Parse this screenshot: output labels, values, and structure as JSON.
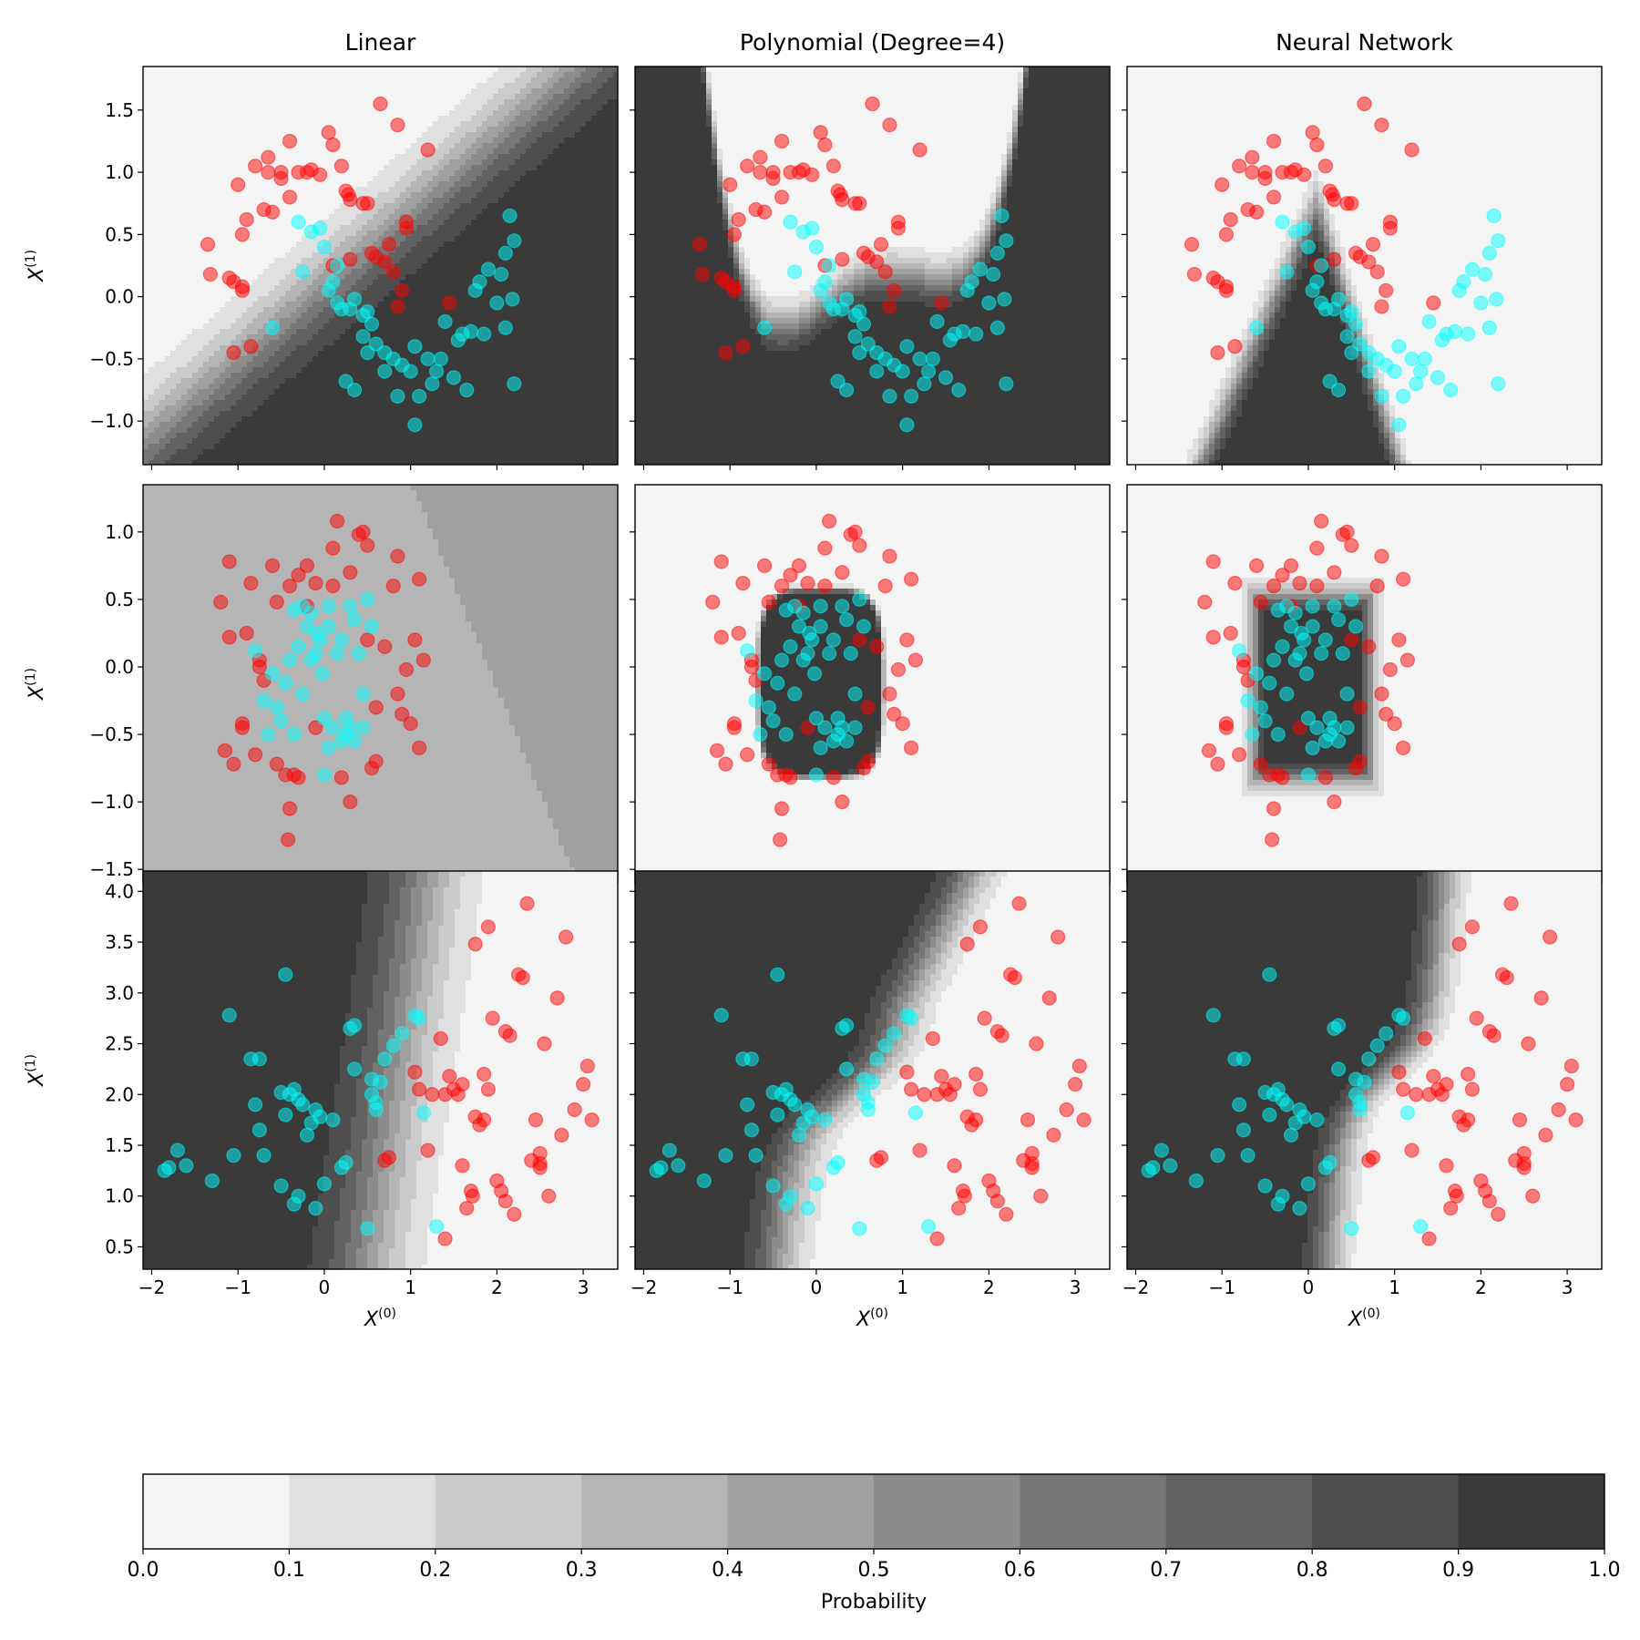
{
  "colors": {
    "class_red": "#ff0000",
    "class_cyan": "#00ffff",
    "levels": [
      "#f4f4f4",
      "#e0e0e0",
      "#cbcbcb",
      "#b5b5b5",
      "#a0a0a0",
      "#8c8c8c",
      "#777777",
      "#626262",
      "#4e4e4e",
      "#3a3a3a"
    ]
  },
  "chart_data": {
    "type": "contour-scatter-grid",
    "col_titles": [
      "Linear",
      "Polynomial (Degree=4)",
      "Neural Network"
    ],
    "xlabel": "X(0)",
    "ylabel": "X(1)",
    "xlim": [
      -2.1,
      3.4
    ],
    "xticks": [
      -2,
      -1,
      0,
      1,
      2,
      3
    ],
    "xtick_labels": [
      "−2",
      "−1",
      "0",
      "1",
      "2",
      "3"
    ],
    "rows": [
      {
        "name": "moons",
        "ylim": [
          -1.35,
          1.85
        ],
        "yticks": [
          -1.0,
          -0.5,
          0.0,
          0.5,
          1.0,
          1.5
        ],
        "ytick_labels": [
          "−1.0",
          "−0.5",
          "0.0",
          "0.5",
          "1.0",
          "1.5"
        ],
        "models": [
          "linear",
          "moons_poly",
          "moons_nn"
        ],
        "class0": [
          [
            -1.35,
            0.42
          ],
          [
            -1.32,
            0.18
          ],
          [
            -1.05,
            0.12
          ],
          [
            -1.1,
            0.15
          ],
          [
            -0.95,
            0.05
          ],
          [
            -0.95,
            0.08
          ],
          [
            -0.95,
            0.5
          ],
          [
            -0.9,
            0.62
          ],
          [
            -1.0,
            0.9
          ],
          [
            -0.8,
            1.05
          ],
          [
            -0.65,
            1.0
          ],
          [
            -0.65,
            1.12
          ],
          [
            -0.5,
            0.95
          ],
          [
            -0.5,
            1.0
          ],
          [
            -0.4,
            1.25
          ],
          [
            -0.3,
            1.0
          ],
          [
            -0.2,
            1.0
          ],
          [
            -0.15,
            1.02
          ],
          [
            -0.05,
            0.98
          ],
          [
            0.05,
            1.32
          ],
          [
            0.1,
            1.22
          ],
          [
            0.2,
            1.05
          ],
          [
            0.25,
            0.85
          ],
          [
            0.28,
            0.82
          ],
          [
            0.3,
            0.78
          ],
          [
            0.45,
            0.75
          ],
          [
            0.5,
            0.75
          ],
          [
            0.65,
            1.55
          ],
          [
            0.85,
            1.38
          ],
          [
            0.95,
            0.55
          ],
          [
            0.95,
            0.6
          ],
          [
            1.2,
            1.18
          ],
          [
            -0.7,
            0.7
          ],
          [
            -0.6,
            0.68
          ],
          [
            -0.4,
            0.8
          ],
          [
            0.55,
            0.35
          ],
          [
            0.6,
            0.32
          ],
          [
            0.7,
            0.28
          ],
          [
            0.8,
            0.2
          ],
          [
            0.85,
            -0.08
          ],
          [
            -1.05,
            -0.45
          ],
          [
            -0.85,
            -0.4
          ],
          [
            0.3,
            0.3
          ],
          [
            0.1,
            0.25
          ],
          [
            0.75,
            0.42
          ],
          [
            1.45,
            -0.05
          ],
          [
            0.9,
            0.05
          ]
        ],
        "class1": [
          [
            -0.6,
            -0.25
          ],
          [
            -0.3,
            0.6
          ],
          [
            -0.25,
            0.2
          ],
          [
            -0.15,
            0.52
          ],
          [
            -0.05,
            0.55
          ],
          [
            0.0,
            0.4
          ],
          [
            0.05,
            0.05
          ],
          [
            0.1,
            0.12
          ],
          [
            0.15,
            0.25
          ],
          [
            0.15,
            -0.05
          ],
          [
            0.2,
            -0.1
          ],
          [
            0.3,
            -0.1
          ],
          [
            0.35,
            -0.02
          ],
          [
            0.45,
            -0.15
          ],
          [
            0.5,
            -0.12
          ],
          [
            0.55,
            -0.22
          ],
          [
            0.45,
            -0.32
          ],
          [
            0.6,
            -0.38
          ],
          [
            0.7,
            -0.45
          ],
          [
            0.8,
            -0.5
          ],
          [
            0.9,
            -0.55
          ],
          [
            1.05,
            -0.4
          ],
          [
            1.2,
            -0.5
          ],
          [
            1.25,
            -0.7
          ],
          [
            1.3,
            -0.6
          ],
          [
            1.35,
            -0.5
          ],
          [
            1.4,
            -0.2
          ],
          [
            1.5,
            -0.65
          ],
          [
            1.55,
            -0.35
          ],
          [
            1.7,
            -0.28
          ],
          [
            1.75,
            0.05
          ],
          [
            1.8,
            0.12
          ],
          [
            1.85,
            -0.3
          ],
          [
            1.9,
            0.22
          ],
          [
            2.0,
            -0.05
          ],
          [
            2.05,
            0.18
          ],
          [
            2.1,
            0.35
          ],
          [
            2.1,
            -0.25
          ],
          [
            2.15,
            0.65
          ],
          [
            2.2,
            0.45
          ],
          [
            2.18,
            -0.02
          ],
          [
            2.2,
            -0.7
          ],
          [
            1.6,
            -0.3
          ],
          [
            1.0,
            -0.6
          ],
          [
            0.7,
            -0.6
          ],
          [
            0.85,
            -0.8
          ],
          [
            1.1,
            -0.8
          ],
          [
            1.05,
            -1.03
          ],
          [
            0.5,
            -0.45
          ],
          [
            1.65,
            -0.75
          ],
          [
            0.35,
            -0.75
          ],
          [
            0.25,
            -0.68
          ]
        ]
      },
      {
        "name": "circles",
        "ylim": [
          -1.6,
          1.35
        ],
        "yticks": [
          -1.5,
          -1.0,
          -0.5,
          0.0,
          0.5,
          1.0
        ],
        "ytick_labels": [
          "−1.5",
          "−1.0",
          "−0.5",
          "0.0",
          "0.5",
          "1.0"
        ],
        "models": [
          "circles_linear",
          "circles_poly",
          "circles_nn"
        ],
        "class0": [
          [
            -1.1,
            0.78
          ],
          [
            -1.2,
            0.48
          ],
          [
            -1.1,
            0.22
          ],
          [
            -1.15,
            -0.62
          ],
          [
            -1.05,
            -0.72
          ],
          [
            -0.95,
            -0.45
          ],
          [
            -0.95,
            -0.42
          ],
          [
            -0.85,
            0.62
          ],
          [
            -0.8,
            -0.65
          ],
          [
            -0.75,
            0.0
          ],
          [
            -0.75,
            0.05
          ],
          [
            -0.7,
            -0.1
          ],
          [
            -0.6,
            0.75
          ],
          [
            -0.55,
            0.48
          ],
          [
            -0.55,
            -0.72
          ],
          [
            -0.45,
            -0.8
          ],
          [
            -0.4,
            0.6
          ],
          [
            -0.35,
            -0.8
          ],
          [
            -0.3,
            0.68
          ],
          [
            -0.2,
            0.75
          ],
          [
            -0.1,
            0.62
          ],
          [
            -0.4,
            -1.05
          ],
          [
            -0.42,
            -1.28
          ],
          [
            -0.3,
            -0.82
          ],
          [
            0.1,
            0.88
          ],
          [
            0.15,
            1.08
          ],
          [
            0.2,
            -0.82
          ],
          [
            0.3,
            -1.0
          ],
          [
            0.4,
            0.98
          ],
          [
            0.45,
            1.0
          ],
          [
            0.5,
            0.9
          ],
          [
            0.55,
            -0.75
          ],
          [
            0.6,
            -0.7
          ],
          [
            0.5,
            0.2
          ],
          [
            0.7,
            0.15
          ],
          [
            0.8,
            0.6
          ],
          [
            0.85,
            0.82
          ],
          [
            0.9,
            -0.35
          ],
          [
            0.95,
            -0.02
          ],
          [
            1.0,
            -0.42
          ],
          [
            1.05,
            0.2
          ],
          [
            1.1,
            0.65
          ],
          [
            1.15,
            0.05
          ],
          [
            -0.9,
            0.25
          ],
          [
            -0.2,
            0.45
          ],
          [
            0.1,
            0.6
          ],
          [
            0.3,
            0.7
          ],
          [
            0.85,
            -0.2
          ],
          [
            -0.1,
            -0.45
          ],
          [
            0.6,
            -0.3
          ],
          [
            1.1,
            -0.6
          ]
        ],
        "class1": [
          [
            -0.8,
            0.12
          ],
          [
            -0.7,
            -0.25
          ],
          [
            -0.65,
            -0.5
          ],
          [
            -0.6,
            -0.05
          ],
          [
            -0.55,
            -0.3
          ],
          [
            -0.5,
            -0.4
          ],
          [
            -0.45,
            -0.12
          ],
          [
            -0.4,
            0.05
          ],
          [
            -0.35,
            0.42
          ],
          [
            -0.3,
            0.15
          ],
          [
            -0.25,
            0.45
          ],
          [
            -0.2,
            0.3
          ],
          [
            -0.15,
            0.4
          ],
          [
            -0.1,
            0.1
          ],
          [
            -0.08,
            0.25
          ],
          [
            -0.05,
            0.2
          ],
          [
            -0.02,
            -0.05
          ],
          [
            0.0,
            -0.38
          ],
          [
            0.05,
            0.3
          ],
          [
            0.1,
            -0.45
          ],
          [
            0.15,
            0.1
          ],
          [
            0.2,
            0.2
          ],
          [
            0.25,
            -0.5
          ],
          [
            0.3,
            0.45
          ],
          [
            0.35,
            0.35
          ],
          [
            0.4,
            0.1
          ],
          [
            0.45,
            -0.2
          ],
          [
            0.5,
            0.5
          ],
          [
            0.55,
            0.3
          ],
          [
            0.2,
            -0.55
          ],
          [
            0.25,
            -0.38
          ],
          [
            0.3,
            -0.45
          ],
          [
            0.05,
            -0.6
          ],
          [
            0.0,
            -0.8
          ],
          [
            -0.25,
            -0.2
          ],
          [
            -0.35,
            -0.5
          ],
          [
            0.45,
            -0.45
          ],
          [
            -0.15,
            0.05
          ],
          [
            0.05,
            0.45
          ],
          [
            0.35,
            -0.55
          ]
        ]
      },
      {
        "name": "blobs",
        "ylim": [
          0.28,
          4.2
        ],
        "yticks": [
          0.5,
          1.0,
          1.5,
          2.0,
          2.5,
          3.0,
          3.5,
          4.0
        ],
        "ytick_labels": [
          "0.5",
          "1.0",
          "1.5",
          "2.0",
          "2.5",
          "3.0",
          "3.5",
          "4.0"
        ],
        "models": [
          "blobs_linear",
          "blobs_poly",
          "blobs_nn"
        ],
        "class0": [
          [
            0.7,
            1.35
          ],
          [
            0.75,
            1.38
          ],
          [
            1.05,
            2.22
          ],
          [
            1.1,
            2.05
          ],
          [
            1.2,
            1.45
          ],
          [
            1.25,
            2.0
          ],
          [
            1.35,
            2.55
          ],
          [
            1.4,
            2.0
          ],
          [
            1.45,
            2.18
          ],
          [
            1.5,
            2.05
          ],
          [
            1.55,
            2.0
          ],
          [
            1.6,
            1.3
          ],
          [
            1.6,
            2.1
          ],
          [
            1.65,
            0.88
          ],
          [
            1.7,
            1.05
          ],
          [
            1.72,
            1.0
          ],
          [
            1.75,
            1.78
          ],
          [
            1.8,
            1.7
          ],
          [
            1.85,
            1.75
          ],
          [
            1.85,
            2.2
          ],
          [
            1.9,
            2.05
          ],
          [
            1.9,
            3.65
          ],
          [
            1.95,
            2.75
          ],
          [
            2.0,
            1.15
          ],
          [
            2.05,
            1.05
          ],
          [
            2.1,
            0.95
          ],
          [
            2.1,
            2.62
          ],
          [
            2.15,
            2.58
          ],
          [
            2.2,
            0.82
          ],
          [
            2.25,
            3.18
          ],
          [
            2.3,
            3.15
          ],
          [
            2.35,
            3.88
          ],
          [
            2.4,
            1.35
          ],
          [
            2.45,
            1.75
          ],
          [
            2.5,
            1.42
          ],
          [
            2.55,
            2.5
          ],
          [
            2.6,
            1.0
          ],
          [
            2.7,
            2.95
          ],
          [
            2.75,
            1.6
          ],
          [
            2.8,
            3.55
          ],
          [
            2.9,
            1.85
          ],
          [
            3.0,
            2.1
          ],
          [
            3.05,
            2.28
          ],
          [
            3.1,
            1.75
          ],
          [
            1.4,
            0.58
          ],
          [
            1.75,
            3.48
          ],
          [
            2.5,
            1.28
          ],
          [
            2.5,
            1.32
          ]
        ],
        "class1": [
          [
            -1.85,
            1.25
          ],
          [
            -1.8,
            1.28
          ],
          [
            -1.7,
            1.45
          ],
          [
            -1.6,
            1.3
          ],
          [
            -1.3,
            1.15
          ],
          [
            -1.1,
            2.78
          ],
          [
            -1.05,
            1.4
          ],
          [
            -0.85,
            2.35
          ],
          [
            -0.8,
            1.9
          ],
          [
            -0.75,
            1.65
          ],
          [
            -0.75,
            2.35
          ],
          [
            -0.7,
            1.4
          ],
          [
            -0.5,
            2.02
          ],
          [
            -0.45,
            3.18
          ],
          [
            -0.45,
            1.8
          ],
          [
            -0.4,
            2.0
          ],
          [
            -0.35,
            2.05
          ],
          [
            -0.3,
            1.95
          ],
          [
            -0.3,
            1.0
          ],
          [
            -0.25,
            1.9
          ],
          [
            -0.2,
            1.6
          ],
          [
            -0.15,
            1.72
          ],
          [
            -0.1,
            1.85
          ],
          [
            -0.05,
            1.78
          ],
          [
            0.0,
            1.12
          ],
          [
            0.1,
            1.75
          ],
          [
            0.2,
            1.28
          ],
          [
            0.25,
            1.33
          ],
          [
            0.3,
            2.65
          ],
          [
            0.35,
            2.68
          ],
          [
            0.35,
            2.25
          ],
          [
            0.5,
            0.68
          ],
          [
            0.55,
            2.0
          ],
          [
            0.6,
            1.85
          ],
          [
            0.7,
            2.35
          ],
          [
            0.8,
            2.48
          ],
          [
            0.9,
            2.6
          ],
          [
            1.05,
            2.78
          ],
          [
            1.1,
            2.75
          ],
          [
            1.15,
            1.82
          ],
          [
            -0.35,
            0.92
          ],
          [
            -0.1,
            0.88
          ],
          [
            0.65,
            2.12
          ],
          [
            0.6,
            1.92
          ],
          [
            -0.5,
            1.1
          ],
          [
            0.55,
            2.15
          ],
          [
            1.3,
            0.7
          ]
        ]
      }
    ],
    "colorbar": {
      "label": "Probability",
      "ticks": [
        0.0,
        0.1,
        0.2,
        0.3,
        0.4,
        0.5,
        0.6,
        0.7,
        0.8,
        0.9,
        1.0
      ],
      "tick_labels": [
        "0.0",
        "0.1",
        "0.2",
        "0.3",
        "0.4",
        "0.5",
        "0.6",
        "0.7",
        "0.8",
        "0.9",
        "1.0"
      ]
    }
  }
}
